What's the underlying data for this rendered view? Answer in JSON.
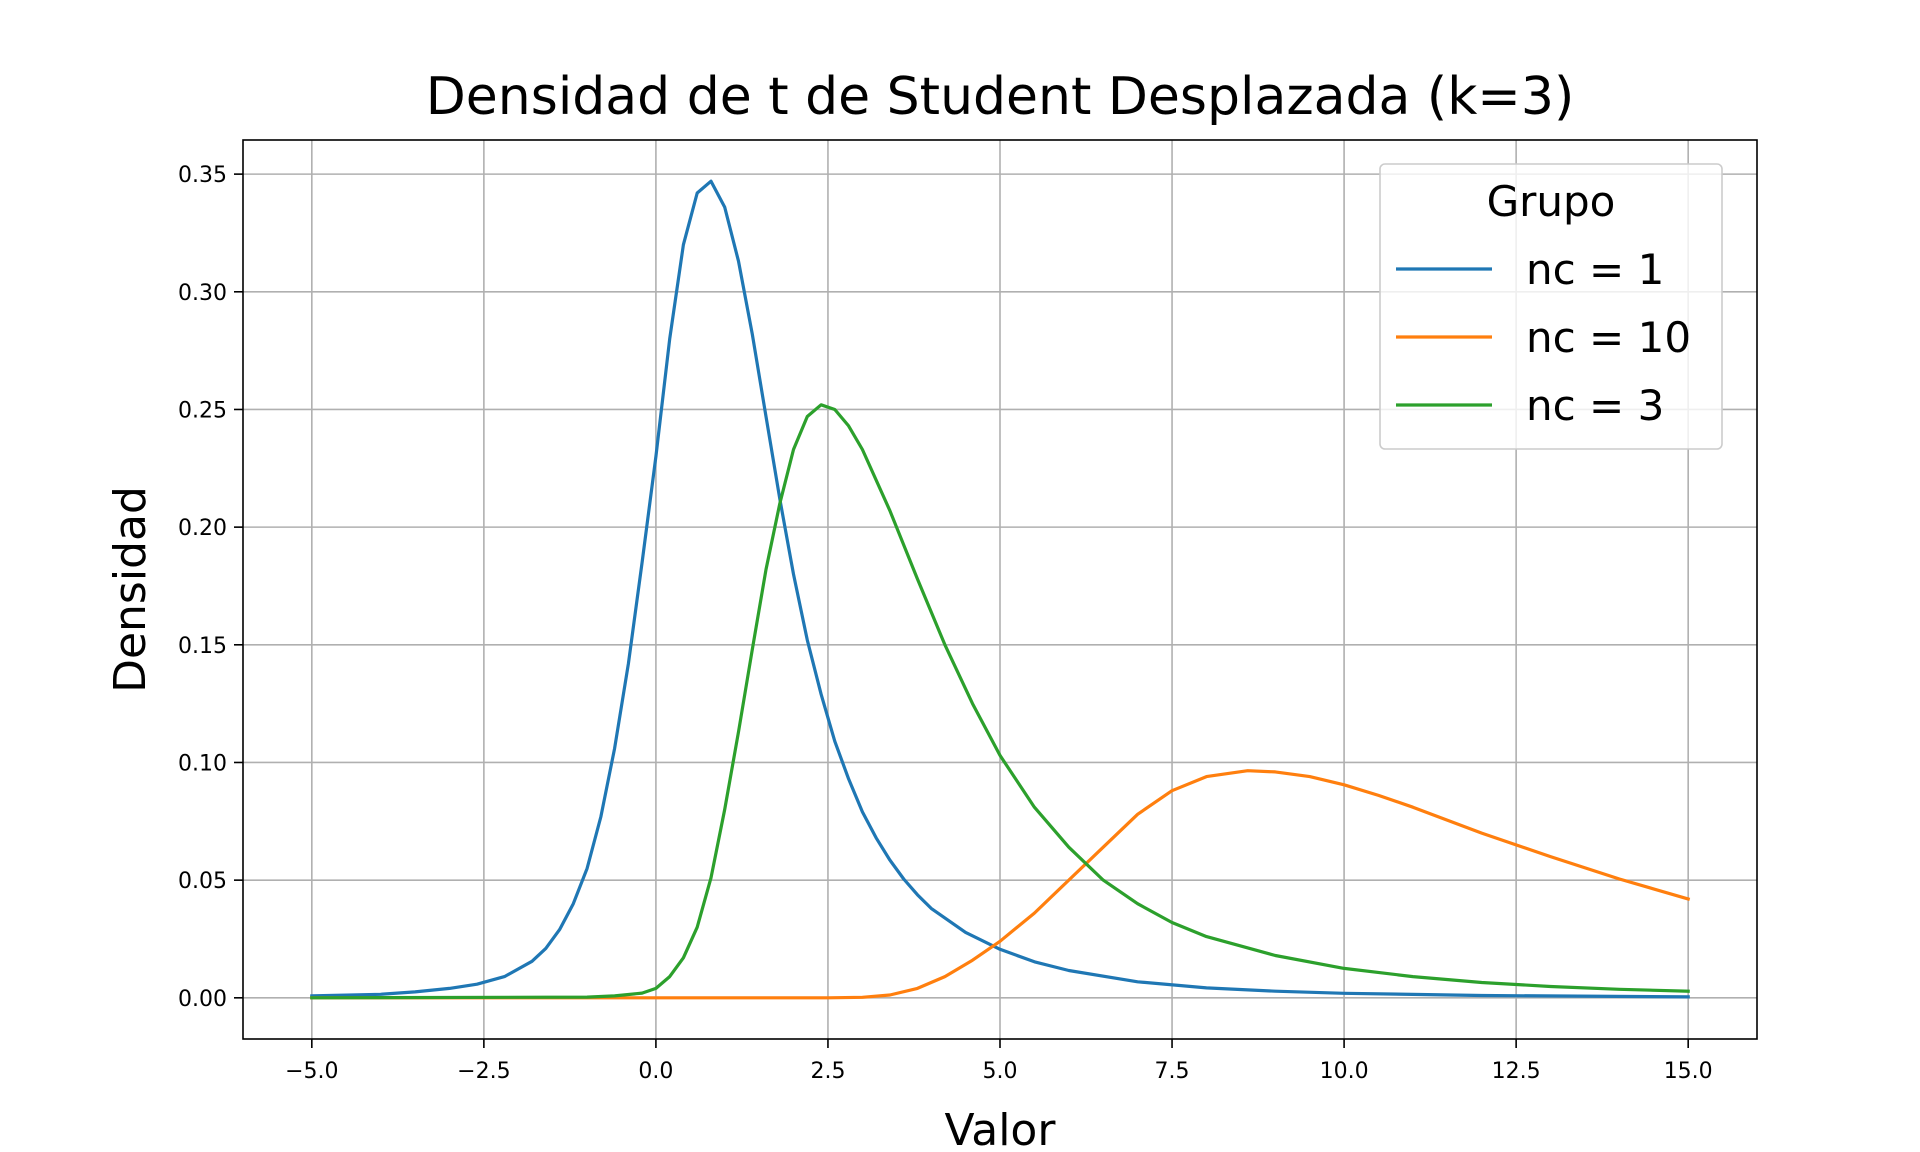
{
  "chart_data": {
    "type": "line",
    "title": "Densidad de t de Student Desplazada (k=3)",
    "xlabel": "Valor",
    "ylabel": "Densidad",
    "xlim": [
      -6.0,
      16.0
    ],
    "ylim": [
      -0.0175,
      0.3645
    ],
    "xticks": [
      -5.0,
      -2.5,
      0.0,
      2.5,
      5.0,
      7.5,
      10.0,
      12.5,
      15.0
    ],
    "xtick_labels": [
      "−5.0",
      "−2.5",
      "0.0",
      "2.5",
      "5.0",
      "7.5",
      "10.0",
      "12.5",
      "15.0"
    ],
    "yticks": [
      0.0,
      0.05,
      0.1,
      0.15,
      0.2,
      0.25,
      0.3,
      0.35
    ],
    "ytick_labels": [
      "0.00",
      "0.05",
      "0.10",
      "0.15",
      "0.20",
      "0.25",
      "0.30",
      "0.35"
    ],
    "grid": true,
    "legend": {
      "title": "Grupo",
      "placement": "top-right"
    },
    "series": [
      {
        "name": "nc = 1",
        "color": "#1f77b4",
        "points": [
          [
            -5.0,
            0.0008
          ],
          [
            -4.0,
            0.0015
          ],
          [
            -3.5,
            0.0025
          ],
          [
            -3.0,
            0.004
          ],
          [
            -2.6,
            0.0058
          ],
          [
            -2.2,
            0.009
          ],
          [
            -1.8,
            0.0155
          ],
          [
            -1.6,
            0.021
          ],
          [
            -1.4,
            0.029
          ],
          [
            -1.2,
            0.04
          ],
          [
            -1.0,
            0.055
          ],
          [
            -0.8,
            0.077
          ],
          [
            -0.6,
            0.106
          ],
          [
            -0.4,
            0.142
          ],
          [
            -0.2,
            0.185
          ],
          [
            0.0,
            0.23
          ],
          [
            0.2,
            0.28
          ],
          [
            0.4,
            0.32
          ],
          [
            0.6,
            0.342
          ],
          [
            0.8,
            0.347
          ],
          [
            1.0,
            0.336
          ],
          [
            1.2,
            0.313
          ],
          [
            1.4,
            0.282
          ],
          [
            1.6,
            0.247
          ],
          [
            1.8,
            0.212
          ],
          [
            2.0,
            0.18
          ],
          [
            2.2,
            0.152
          ],
          [
            2.4,
            0.129
          ],
          [
            2.6,
            0.109
          ],
          [
            2.8,
            0.093
          ],
          [
            3.0,
            0.079
          ],
          [
            3.2,
            0.068
          ],
          [
            3.4,
            0.0585
          ],
          [
            3.6,
            0.0505
          ],
          [
            3.8,
            0.0438
          ],
          [
            4.0,
            0.038
          ],
          [
            4.5,
            0.0278
          ],
          [
            5.0,
            0.0206
          ],
          [
            5.5,
            0.0153
          ],
          [
            6.0,
            0.0116
          ],
          [
            7.0,
            0.0068
          ],
          [
            8.0,
            0.0042
          ],
          [
            9.0,
            0.0028
          ],
          [
            10.0,
            0.0019
          ],
          [
            12.0,
            0.001
          ],
          [
            15.0,
            0.0004
          ]
        ]
      },
      {
        "name": "nc = 10",
        "color": "#ff7f0e",
        "points": [
          [
            -5.0,
            0.0
          ],
          [
            2.5,
            0.0
          ],
          [
            3.0,
            0.0002
          ],
          [
            3.4,
            0.0012
          ],
          [
            3.8,
            0.004
          ],
          [
            4.2,
            0.009
          ],
          [
            4.6,
            0.016
          ],
          [
            5.0,
            0.024
          ],
          [
            5.5,
            0.036
          ],
          [
            6.0,
            0.05
          ],
          [
            6.5,
            0.064
          ],
          [
            7.0,
            0.078
          ],
          [
            7.5,
            0.088
          ],
          [
            8.0,
            0.094
          ],
          [
            8.6,
            0.0965
          ],
          [
            9.0,
            0.096
          ],
          [
            9.5,
            0.094
          ],
          [
            10.0,
            0.0905
          ],
          [
            10.5,
            0.086
          ],
          [
            11.0,
            0.081
          ],
          [
            12.0,
            0.07
          ],
          [
            13.0,
            0.06
          ],
          [
            14.0,
            0.0505
          ],
          [
            15.0,
            0.042
          ]
        ]
      },
      {
        "name": "nc = 3",
        "color": "#2ca02c",
        "points": [
          [
            -5.0,
            0.0
          ],
          [
            -1.0,
            0.0003
          ],
          [
            -0.6,
            0.0008
          ],
          [
            -0.2,
            0.002
          ],
          [
            0.0,
            0.004
          ],
          [
            0.2,
            0.009
          ],
          [
            0.4,
            0.017
          ],
          [
            0.6,
            0.03
          ],
          [
            0.8,
            0.051
          ],
          [
            1.0,
            0.08
          ],
          [
            1.2,
            0.113
          ],
          [
            1.4,
            0.148
          ],
          [
            1.6,
            0.182
          ],
          [
            1.8,
            0.21
          ],
          [
            2.0,
            0.233
          ],
          [
            2.2,
            0.247
          ],
          [
            2.4,
            0.252
          ],
          [
            2.6,
            0.25
          ],
          [
            2.8,
            0.243
          ],
          [
            3.0,
            0.233
          ],
          [
            3.4,
            0.207
          ],
          [
            3.8,
            0.178
          ],
          [
            4.2,
            0.15
          ],
          [
            4.6,
            0.125
          ],
          [
            5.0,
            0.103
          ],
          [
            5.5,
            0.081
          ],
          [
            6.0,
            0.064
          ],
          [
            6.5,
            0.05
          ],
          [
            7.0,
            0.04
          ],
          [
            7.5,
            0.032
          ],
          [
            8.0,
            0.026
          ],
          [
            9.0,
            0.018
          ],
          [
            10.0,
            0.0125
          ],
          [
            11.0,
            0.009
          ],
          [
            12.0,
            0.0065
          ],
          [
            13.0,
            0.0048
          ],
          [
            14.0,
            0.0036
          ],
          [
            15.0,
            0.0028
          ]
        ]
      }
    ]
  }
}
